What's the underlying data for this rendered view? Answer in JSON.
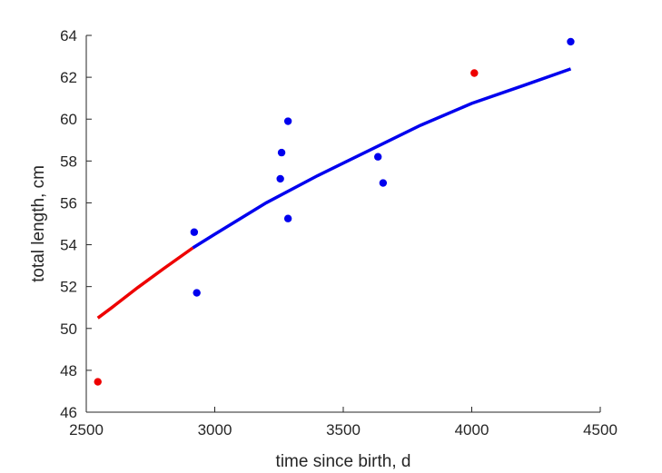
{
  "chart_data": {
    "type": "scatter",
    "title": "",
    "xlabel": "time since birth, d",
    "ylabel": "total length, cm",
    "xlim": [
      2500,
      4500
    ],
    "ylim": [
      46,
      64
    ],
    "xticks": [
      2500,
      3000,
      3500,
      4000,
      4500
    ],
    "yticks": [
      46,
      48,
      50,
      52,
      54,
      56,
      58,
      60,
      62,
      64
    ],
    "grid": false,
    "colors": {
      "blue": "#0000ee",
      "red": "#ee0000",
      "axis": "#262626"
    },
    "points_blue": [
      {
        "x": 2920,
        "y": 54.6
      },
      {
        "x": 2930,
        "y": 51.7
      },
      {
        "x": 3255,
        "y": 57.15
      },
      {
        "x": 3260,
        "y": 58.4
      },
      {
        "x": 3285,
        "y": 59.9
      },
      {
        "x": 3285,
        "y": 55.25
      },
      {
        "x": 3635,
        "y": 58.2
      },
      {
        "x": 3655,
        "y": 56.95
      },
      {
        "x": 4385,
        "y": 63.7
      }
    ],
    "points_red": [
      {
        "x": 2545,
        "y": 47.45
      },
      {
        "x": 4010,
        "y": 62.2
      }
    ],
    "fit_red": [
      {
        "x": 2545,
        "y": 50.5
      },
      {
        "x": 2600,
        "y": 51.0
      },
      {
        "x": 2700,
        "y": 51.95
      },
      {
        "x": 2800,
        "y": 52.85
      },
      {
        "x": 2915,
        "y": 53.85
      }
    ],
    "fit_blue": [
      {
        "x": 2915,
        "y": 53.85
      },
      {
        "x": 3000,
        "y": 54.5
      },
      {
        "x": 3200,
        "y": 56.0
      },
      {
        "x": 3400,
        "y": 57.3
      },
      {
        "x": 3600,
        "y": 58.5
      },
      {
        "x": 3800,
        "y": 59.7
      },
      {
        "x": 4000,
        "y": 60.75
      },
      {
        "x": 4200,
        "y": 61.6
      },
      {
        "x": 4385,
        "y": 62.4
      }
    ]
  }
}
